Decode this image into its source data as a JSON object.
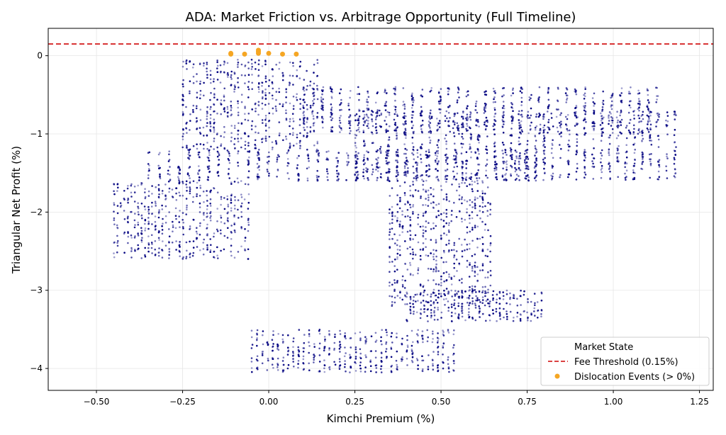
{
  "chart_data": {
    "type": "scatter",
    "title": "ADA: Market Friction vs. Arbitrage Opportunity (Full Timeline)",
    "xlabel": "Kimchi Premium (%)",
    "ylabel": "Triangular Net Profit (%)",
    "xlim": [
      -0.64,
      1.29
    ],
    "ylim": [
      -4.28,
      0.35
    ],
    "xticks": [
      -0.5,
      -0.25,
      0.0,
      0.25,
      0.5,
      0.75,
      1.0,
      1.25
    ],
    "xtick_labels": [
      "−0.50",
      "−0.25",
      "0.00",
      "0.25",
      "0.50",
      "0.75",
      "1.00",
      "1.25"
    ],
    "yticks": [
      0,
      -1,
      -2,
      -3,
      -4
    ],
    "ytick_labels": [
      "0",
      "−1",
      "−2",
      "−3",
      "−4"
    ],
    "grid": true,
    "legend_position": "bottom-right",
    "legend": {
      "title": "Market State",
      "entries": [
        "Fee Threshold (0.15%)",
        "Dislocation Events (> 0%)"
      ]
    },
    "threshold": {
      "name": "Fee Threshold (0.15%)",
      "y": 0.15,
      "color": "#d62728",
      "style": "dashed"
    },
    "series": [
      {
        "name": "Market State",
        "color": "#000080",
        "kind": "density",
        "clusters": [
          {
            "x": [
              -0.35,
              0.8
            ],
            "y": [
              -1.6,
              -1.2
            ]
          },
          {
            "x": [
              0.1,
              1.15
            ],
            "y": [
              -1.0,
              -0.4
            ]
          },
          {
            "x": [
              0.25,
              1.2
            ],
            "y": [
              -1.6,
              -0.7
            ]
          },
          {
            "x": [
              -0.25,
              0.15
            ],
            "y": [
              -1.2,
              -0.05
            ]
          },
          {
            "x": [
              -0.45,
              -0.05
            ],
            "y": [
              -2.6,
              -1.6
            ]
          },
          {
            "x": [
              0.35,
              0.65
            ],
            "y": [
              -3.2,
              -1.6
            ]
          },
          {
            "x": [
              0.4,
              0.8
            ],
            "y": [
              -3.4,
              -3.0
            ]
          },
          {
            "x": [
              -0.05,
              0.55
            ],
            "y": [
              -4.05,
              -3.5
            ]
          }
        ]
      },
      {
        "name": "Dislocation Events (> 0%)",
        "color": "#f5a623",
        "x": [
          -0.11,
          -0.11,
          -0.07,
          -0.03,
          -0.03,
          -0.03,
          0.0,
          0.04,
          0.08
        ],
        "y": [
          0.02,
          0.03,
          0.02,
          0.03,
          0.05,
          0.07,
          0.03,
          0.02,
          0.02
        ]
      }
    ]
  }
}
